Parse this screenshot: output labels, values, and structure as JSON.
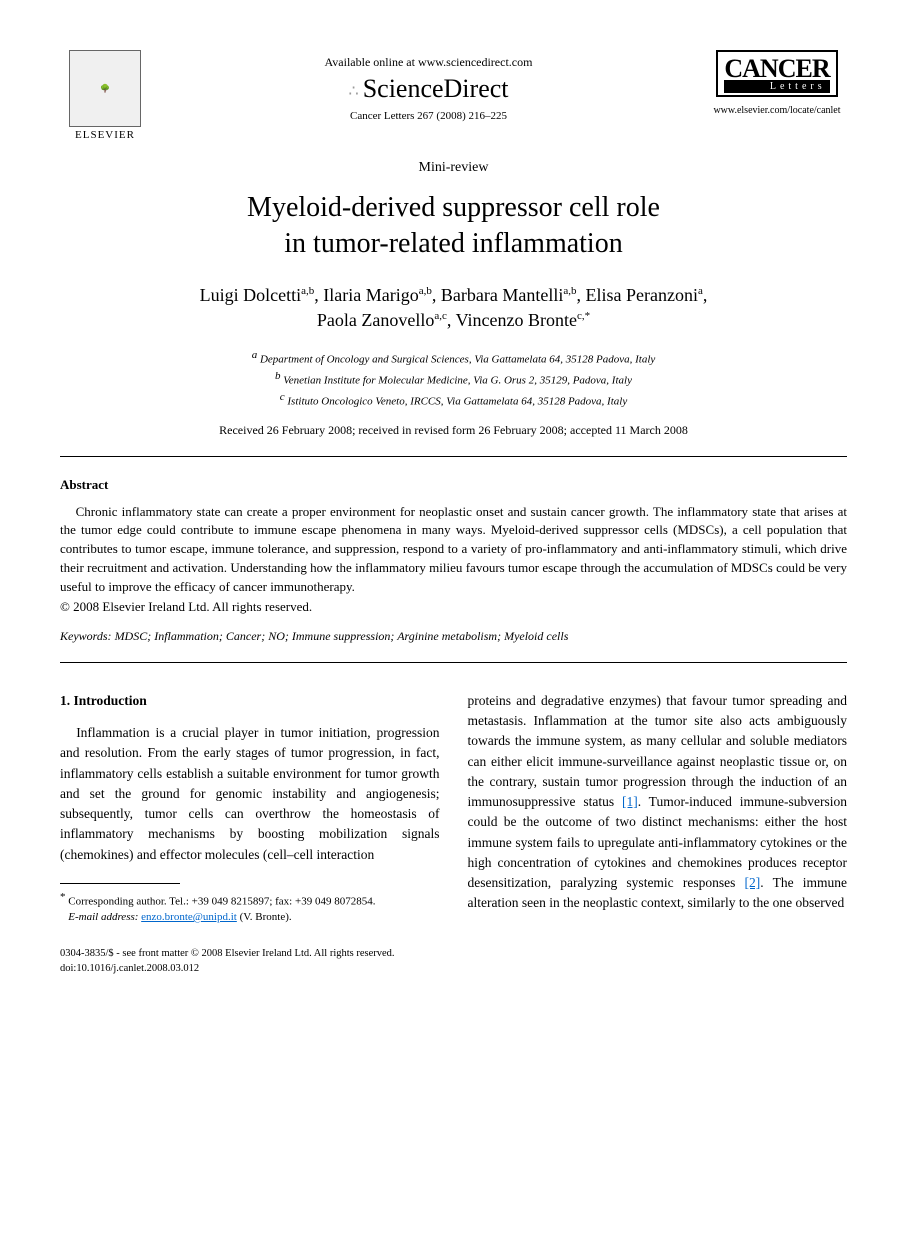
{
  "header": {
    "publisher_name": "ELSEVIER",
    "available_text": "Available online at www.sciencedirect.com",
    "platform_name": "ScienceDirect",
    "citation": "Cancer Letters 267 (2008) 216–225",
    "journal_name_line1": "CANCER",
    "journal_name_line2": "Letters",
    "journal_url": "www.elsevier.com/locate/canlet"
  },
  "article": {
    "type": "Mini-review",
    "title_line1": "Myeloid-derived suppressor cell role",
    "title_line2": "in tumor-related inflammation",
    "authors_line1": "Luigi Dolcetti",
    "aff_1_1": "a,b",
    "author2": ", Ilaria Marigo",
    "aff_1_2": "a,b",
    "author3": ", Barbara Mantelli",
    "aff_1_3": "a,b",
    "author4": ", Elisa Peranzoni",
    "aff_1_4": "a",
    "authors_sep1": ",",
    "authors_line2_a": "Paola Zanovello",
    "aff_2_1": "a,c",
    "author6": ", Vincenzo Bronte",
    "aff_2_2": "c,",
    "corr_mark": "*",
    "affiliation_a": "Department of Oncology and Surgical Sciences, Via Gattamelata 64, 35128 Padova, Italy",
    "affiliation_b": "Venetian Institute for Molecular Medicine, Via G. Orus 2, 35129, Padova, Italy",
    "affiliation_c": "Istituto Oncologico Veneto, IRCCS, Via Gattamelata 64, 35128 Padova, Italy",
    "aff_a_sup": "a",
    "aff_b_sup": "b",
    "aff_c_sup": "c",
    "dates": "Received 26 February 2008; received in revised form 26 February 2008; accepted 11 March 2008"
  },
  "abstract": {
    "heading": "Abstract",
    "text": "Chronic inflammatory state can create a proper environment for neoplastic onset and sustain cancer growth. The inflammatory state that arises at the tumor edge could contribute to immune escape phenomena in many ways. Myeloid-derived suppressor cells (MDSCs), a cell population that contributes to tumor escape, immune tolerance, and suppression, respond to a variety of pro-inflammatory and anti-inflammatory stimuli, which drive their recruitment and activation. Understanding how the inflammatory milieu favours tumor escape through the accumulation of MDSCs could be very useful to improve the efficacy of cancer immunotherapy.",
    "copyright": "© 2008 Elsevier Ireland Ltd. All rights reserved."
  },
  "keywords": {
    "label": "Keywords:",
    "values": " MDSC; Inflammation; Cancer; NO; Immune suppression; Arginine metabolism; Myeloid cells"
  },
  "body": {
    "section1_heading": "1. Introduction",
    "col1_p1": "Inflammation is a crucial player in tumor initiation, progression and resolution. From the early stages of tumor progression, in fact, inflammatory cells establish a suitable environment for tumor growth and set the ground for genomic instability and angiogenesis; subsequently, tumor cells can overthrow the homeostasis of inflammatory mechanisms by boosting mobilization signals (chemokines) and effector molecules (cell–cell interaction",
    "col2_p1a": "proteins and degradative enzymes) that favour tumor spreading and metastasis. Inflammation at the tumor site also acts ambiguously towards the immune system, as many cellular and soluble mediators can either elicit immune-surveillance against neoplastic tissue or, on the contrary, sustain tumor progression through the induction of an immunosuppressive status ",
    "cite1": "[1]",
    "col2_p1b": ". Tumor-induced immune-subversion could be the outcome of two distinct mechanisms: either the host immune system fails to upregulate anti-inflammatory cytokines or the high concentration of cytokines and chemokines produces receptor desensitization, paralyzing systemic responses ",
    "cite2": "[2]",
    "col2_p1c": ". The immune alteration seen in the neoplastic context, similarly to the one observed"
  },
  "footnote": {
    "corr_mark": "*",
    "corr_text": " Corresponding author. Tel.: +39 049 8215897; fax: +39 049 8072854.",
    "email_label": "E-mail address:",
    "email": "enzo.bronte@unipd.it",
    "email_suffix": " (V. Bronte)."
  },
  "footer": {
    "line1": "0304-3835/$ - see front matter © 2008 Elsevier Ireland Ltd. All rights reserved.",
    "line2": "doi:10.1016/j.canlet.2008.03.012"
  }
}
